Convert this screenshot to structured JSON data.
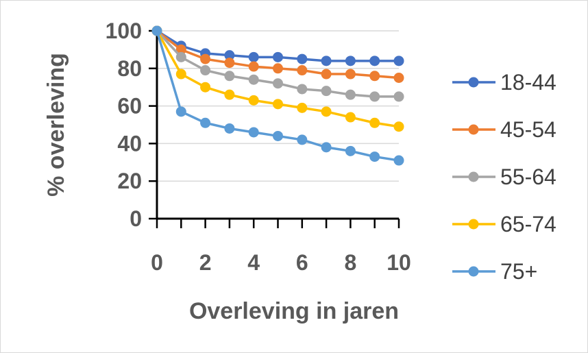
{
  "chart_data": {
    "type": "line",
    "x": [
      0,
      1,
      2,
      3,
      4,
      5,
      6,
      7,
      8,
      9,
      10
    ],
    "xlabel": "Overleving in jaren",
    "ylabel": "% overleving",
    "xlim": [
      0,
      10
    ],
    "ylim": [
      0,
      100
    ],
    "x_ticks": [
      0,
      2,
      4,
      6,
      8,
      10
    ],
    "y_ticks": [
      0,
      20,
      40,
      60,
      80,
      100
    ],
    "grid": "horizontal",
    "legend_position": "right",
    "series": [
      {
        "name": "18-44",
        "color": "#4472C4",
        "values": [
          100,
          92,
          88,
          87,
          86,
          86,
          85,
          84,
          84,
          84,
          84
        ]
      },
      {
        "name": "45-54",
        "color": "#ED7D31",
        "values": [
          100,
          90,
          85,
          83,
          81,
          80,
          79,
          77,
          77,
          76,
          75
        ]
      },
      {
        "name": "55-64",
        "color": "#A5A5A5",
        "values": [
          100,
          86,
          79,
          76,
          74,
          72,
          69,
          68,
          66,
          65,
          65
        ]
      },
      {
        "name": "65-74",
        "color": "#FFC000",
        "values": [
          100,
          77,
          70,
          66,
          63,
          61,
          59,
          57,
          54,
          51,
          49
        ]
      },
      {
        "name": "75+",
        "color": "#5B9BD5",
        "values": [
          100,
          57,
          51,
          48,
          46,
          44,
          42,
          38,
          36,
          33,
          31
        ]
      }
    ]
  }
}
